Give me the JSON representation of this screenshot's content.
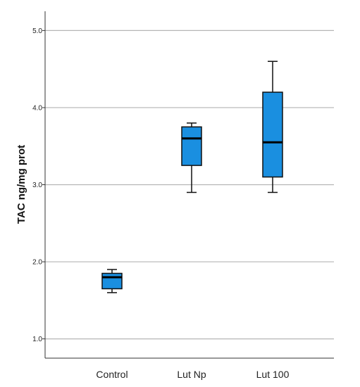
{
  "chart_data": {
    "type": "boxplot",
    "ylabel": "TAC ng/mg prot",
    "xlabel": "",
    "ylim": [
      0.75,
      5.25
    ],
    "yticks": [
      1.0,
      2.0,
      3.0,
      4.0,
      5.0
    ],
    "ytick_labels": [
      "1.0",
      "2.0",
      "3.0",
      "4.0",
      "5.0"
    ],
    "grid": true,
    "box_color": "#1a8fe0",
    "categories": [
      "Control",
      "Lut Np",
      "Lut 100"
    ],
    "boxes": [
      {
        "min": 1.6,
        "q1": 1.65,
        "median": 1.8,
        "q3": 1.85,
        "max": 1.9
      },
      {
        "min": 2.9,
        "q1": 3.25,
        "median": 3.6,
        "q3": 3.75,
        "max": 3.8
      },
      {
        "min": 2.9,
        "q1": 3.1,
        "median": 3.55,
        "q3": 4.2,
        "max": 4.6
      }
    ]
  }
}
